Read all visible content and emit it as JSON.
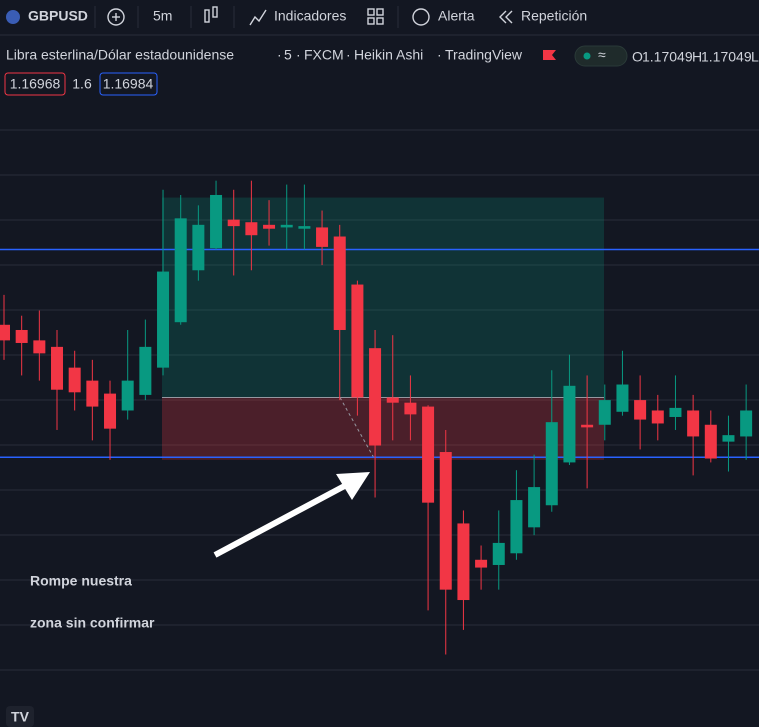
{
  "toolbar": {
    "symbol": "GBPUSD",
    "interval": "5m",
    "indicators": "Indicadores",
    "alert": "Alerta",
    "replay": "Repetición"
  },
  "legend": {
    "title": "Libra esterlina/Dólar estadounidense",
    "interval": "5",
    "source": "FXCM",
    "style": "Heikin Ashi",
    "brand": "TradingView",
    "open_key": "O",
    "open": 1.17049,
    "high_key": "H",
    "high": 1.17049,
    "low_key": "L"
  },
  "quote": {
    "bid": 1.16968,
    "spread": "1.6",
    "ask": 1.16984
  },
  "chart_data": {
    "type": "candlestick",
    "ylim": [
      1.169493,
      1.169959
    ],
    "up_color": "#089981",
    "down_color": "#f23645",
    "level_color": "#2962ff",
    "open": [
      1.169782,
      1.169778,
      1.16977,
      1.169765,
      1.169749,
      1.169739,
      1.169729,
      1.169716,
      1.169728,
      1.169749,
      1.169784,
      1.169824,
      1.169841,
      1.169863,
      1.169861,
      1.169859,
      1.169857,
      1.169856,
      1.169857,
      1.16985,
      1.169813,
      1.169764,
      1.169726,
      1.169722,
      1.169719,
      1.169684,
      1.169629,
      1.169601,
      1.169597,
      1.169606,
      1.169626,
      1.169643,
      1.169676,
      1.169705,
      1.169705,
      1.169715,
      1.169724,
      1.169716,
      1.169711,
      1.169716,
      1.169705,
      1.169692,
      1.169696
    ],
    "high": [
      1.169805,
      1.169789,
      1.169793,
      1.169778,
      1.169762,
      1.169755,
      1.169739,
      1.169778,
      1.169786,
      1.169886,
      1.169882,
      1.169874,
      1.169893,
      1.169886,
      1.169893,
      1.169878,
      1.16989,
      1.16989,
      1.16987,
      1.169859,
      1.169816,
      1.169778,
      1.169774,
      1.169743,
      1.16972,
      1.169701,
      1.169639,
      1.169612,
      1.169639,
      1.16967,
      1.169682,
      1.169747,
      1.169759,
      1.169743,
      1.169736,
      1.169762,
      1.169743,
      1.169728,
      1.169743,
      1.169728,
      1.169716,
      1.169712,
      1.169736
    ],
    "low": [
      1.169755,
      1.169743,
      1.169739,
      1.169701,
      1.169716,
      1.169693,
      1.169678,
      1.169709,
      1.169724,
      1.169743,
      1.169782,
      1.169816,
      1.16984,
      1.16982,
      1.169824,
      1.169843,
      1.16984,
      1.16984,
      1.169828,
      1.169724,
      1.169712,
      1.169649,
      1.169693,
      1.169693,
      1.169562,
      1.169528,
      1.169547,
      1.169578,
      1.169578,
      1.169601,
      1.16962,
      1.169638,
      1.169674,
      1.169656,
      1.169693,
      1.169712,
      1.169686,
      1.169693,
      1.169701,
      1.169666,
      1.169676,
      1.169669,
      1.169678
    ],
    "close": [
      1.16977,
      1.169768,
      1.16976,
      1.169732,
      1.16973,
      1.169719,
      1.169702,
      1.169739,
      1.169765,
      1.169823,
      1.169864,
      1.169859,
      1.169882,
      1.169858,
      1.169851,
      1.169856,
      1.169859,
      1.169858,
      1.169842,
      1.169778,
      1.169726,
      1.169689,
      1.169722,
      1.169713,
      1.169645,
      1.169578,
      1.16957,
      1.169595,
      1.169614,
      1.169647,
      1.169657,
      1.169707,
      1.169735,
      1.169703,
      1.169724,
      1.169736,
      1.169709,
      1.169706,
      1.169718,
      1.169696,
      1.169679,
      1.169697,
      1.169716
    ],
    "position": {
      "target": 1.16988,
      "entry": 1.169726,
      "stop": 1.169678
    },
    "annotation": [
      "Rompe nuestra",
      "zona sin confirmar"
    ]
  }
}
